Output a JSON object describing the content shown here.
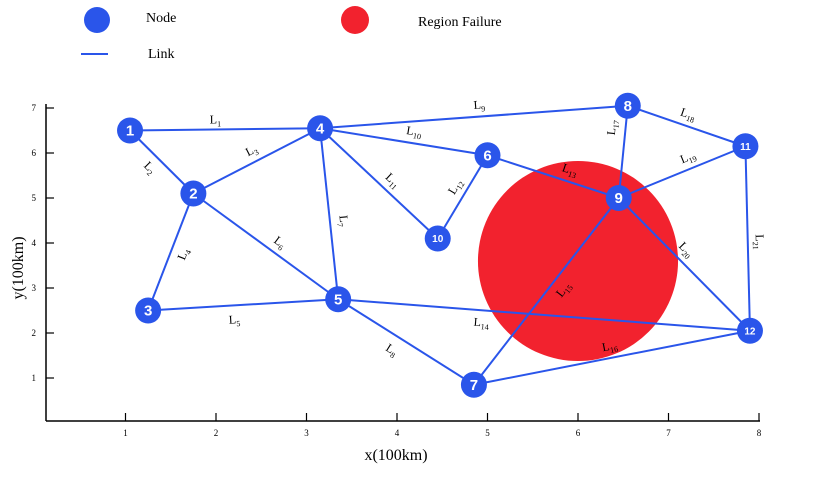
{
  "legend": {
    "node_label": "Node",
    "link_label": "Link",
    "failure_label": "Region Failure"
  },
  "colors": {
    "node": "#2a55ea",
    "link": "#2a55ea",
    "failure": "#f2222e",
    "axis": "#000000"
  },
  "axes": {
    "x_title": "x(100km)",
    "y_title": "y(100km)",
    "x_ticks": [
      "1",
      "2",
      "3",
      "4",
      "5",
      "6",
      "7",
      "8"
    ],
    "y_ticks": [
      "1",
      "2",
      "3",
      "4",
      "5",
      "6",
      "7"
    ]
  },
  "nodes": [
    {
      "id": "1",
      "x": 1.05,
      "y": 6.5
    },
    {
      "id": "2",
      "x": 1.75,
      "y": 5.1
    },
    {
      "id": "3",
      "x": 1.25,
      "y": 2.5
    },
    {
      "id": "4",
      "x": 3.15,
      "y": 6.55
    },
    {
      "id": "5",
      "x": 3.35,
      "y": 2.75
    },
    {
      "id": "6",
      "x": 5.0,
      "y": 5.95
    },
    {
      "id": "7",
      "x": 4.85,
      "y": 0.85
    },
    {
      "id": "8",
      "x": 6.55,
      "y": 7.05
    },
    {
      "id": "9",
      "x": 6.45,
      "y": 5.0
    },
    {
      "id": "10",
      "x": 4.45,
      "y": 4.1
    },
    {
      "id": "11",
      "x": 7.85,
      "y": 6.15
    },
    {
      "id": "12",
      "x": 7.9,
      "y": 2.05
    }
  ],
  "links": [
    {
      "name": "L",
      "sub": "1",
      "from": "1",
      "to": "4"
    },
    {
      "name": "L",
      "sub": "2",
      "from": "1",
      "to": "2"
    },
    {
      "name": "L",
      "sub": "3",
      "from": "2",
      "to": "4"
    },
    {
      "name": "L",
      "sub": "4",
      "from": "2",
      "to": "3"
    },
    {
      "name": "L",
      "sub": "5",
      "from": "3",
      "to": "5"
    },
    {
      "name": "L",
      "sub": "6",
      "from": "2",
      "to": "5"
    },
    {
      "name": "L",
      "sub": "7",
      "from": "4",
      "to": "5"
    },
    {
      "name": "L",
      "sub": "8",
      "from": "5",
      "to": "7"
    },
    {
      "name": "L",
      "sub": "9",
      "from": "4",
      "to": "8"
    },
    {
      "name": "L",
      "sub": "10",
      "from": "4",
      "to": "6"
    },
    {
      "name": "L",
      "sub": "11",
      "from": "4",
      "to": "10"
    },
    {
      "name": "L",
      "sub": "12",
      "from": "6",
      "to": "10"
    },
    {
      "name": "L",
      "sub": "13",
      "from": "6",
      "to": "9"
    },
    {
      "name": "L",
      "sub": "14",
      "from": "5",
      "to": "12"
    },
    {
      "name": "L",
      "sub": "15",
      "from": "7",
      "to": "9"
    },
    {
      "name": "L",
      "sub": "16",
      "from": "7",
      "to": "12"
    },
    {
      "name": "L",
      "sub": "17",
      "from": "8",
      "to": "9"
    },
    {
      "name": "L",
      "sub": "18",
      "from": "8",
      "to": "11"
    },
    {
      "name": "L",
      "sub": "19",
      "from": "9",
      "to": "11"
    },
    {
      "name": "L",
      "sub": "20",
      "from": "9",
      "to": "12"
    },
    {
      "name": "L",
      "sub": "21",
      "from": "11",
      "to": "12"
    }
  ],
  "failure_region": {
    "cx": 6.0,
    "cy": 3.6,
    "r": 2.2
  }
}
